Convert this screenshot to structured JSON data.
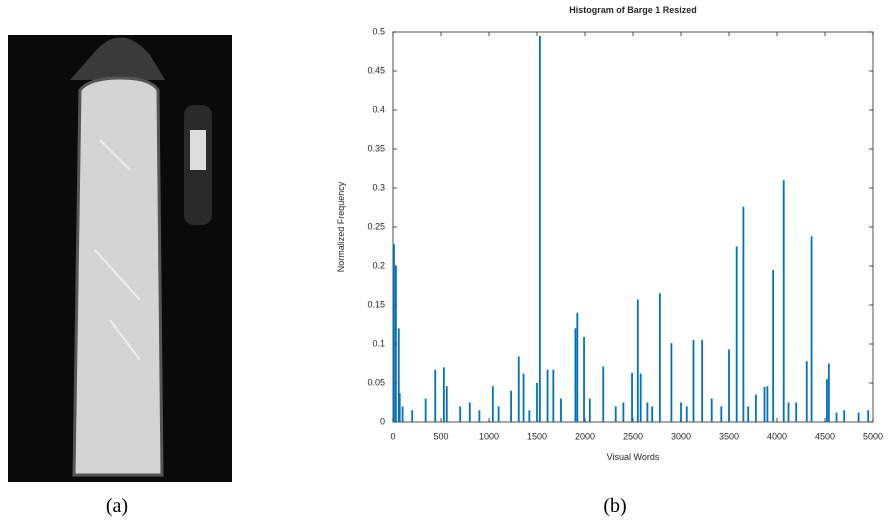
{
  "panel_labels": [
    "(a)",
    "(b)"
  ],
  "chart_data": {
    "type": "bar",
    "title": "Histogram of Barge 1 Resized",
    "x_label": "Visual Words",
    "y_label": "Normalized Frequency",
    "color": "#0072bd",
    "x": [
      10,
      30,
      60,
      70,
      100,
      200,
      340,
      440,
      530,
      560,
      700,
      800,
      900,
      1040,
      1100,
      1230,
      1310,
      1360,
      1420,
      1500,
      1530,
      1610,
      1670,
      1750,
      1900,
      1920,
      1990,
      2050,
      2190,
      2320,
      2400,
      2490,
      2550,
      2580,
      2650,
      2700,
      2780,
      2900,
      3000,
      3060,
      3130,
      3220,
      3320,
      3420,
      3500,
      3580,
      3650,
      3700,
      3780,
      3870,
      3900,
      3960,
      4070,
      4120,
      4200,
      4310,
      4360,
      4520,
      4540,
      4620,
      4700,
      4850,
      4950
    ],
    "values": [
      0.228,
      0.2,
      0.12,
      0.037,
      0.02,
      0.015,
      0.03,
      0.067,
      0.07,
      0.046,
      0.02,
      0.025,
      0.015,
      0.046,
      0.02,
      0.04,
      0.084,
      0.062,
      0.015,
      0.05,
      0.495,
      0.067,
      0.067,
      0.03,
      0.12,
      0.14,
      0.109,
      0.03,
      0.071,
      0.02,
      0.025,
      0.063,
      0.157,
      0.062,
      0.025,
      0.02,
      0.165,
      0.101,
      0.025,
      0.02,
      0.105,
      0.105,
      0.03,
      0.02,
      0.093,
      0.225,
      0.276,
      0.02,
      0.035,
      0.045,
      0.046,
      0.195,
      0.31,
      0.025,
      0.025,
      0.078,
      0.238,
      0.055,
      0.075,
      0.012,
      0.015,
      0.012,
      0.015
    ],
    "xlim": [
      0,
      5000
    ],
    "ylim": [
      0,
      0.5
    ],
    "xticks": [
      0,
      500,
      1000,
      1500,
      2000,
      2500,
      3000,
      3500,
      4000,
      4500,
      5000
    ],
    "yticks": [
      0,
      0.05,
      0.1,
      0.15,
      0.2,
      0.25,
      0.3,
      0.35,
      0.4,
      0.45,
      0.5
    ]
  }
}
